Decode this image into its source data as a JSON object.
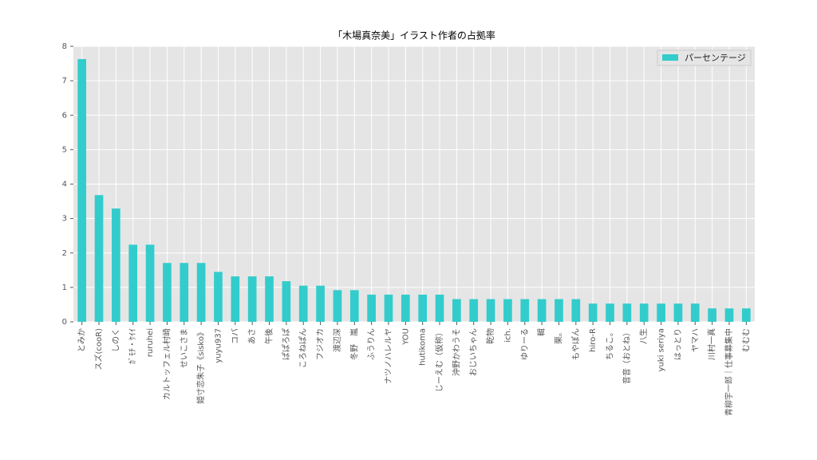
{
  "chart_data": {
    "type": "bar",
    "title": "「木場真奈美」イラスト作者の占拠率",
    "categories": [
      "とみか",
      "スズ(cooR)",
      "しのく",
      "ｶﾞﾓﾁ・ｹｲｲ",
      "ruruhei",
      "カルトッフェル村崎",
      "せいこさま",
      "姫寸恋朱子《sisko》",
      "yuyu937",
      "コバ",
      "あさ",
      "午後",
      "ぱぱろぱ",
      "ころねぱん",
      "フジオカ",
      "渡辺深",
      "冬野　嵐",
      "ふうりん",
      "ナツノハレルヤ",
      "YOU",
      "hutikoma",
      "じーえむ（仮称）",
      "沖野かわうそ",
      "おじいちゃん",
      "乾物",
      "ich.",
      "ゆりーる",
      "輯",
      "栗。",
      "もやぽん",
      "hiro-R",
      "ちるこ。",
      "音音（おとね）",
      "八生",
      "yuki seriya",
      "はっとり",
      "ヤマハ",
      "川村一真",
      "青柳宇一郎｜仕事募集中",
      "むむむ"
    ],
    "series": [
      {
        "name": "パーセンテージ",
        "color": "#33cccc",
        "values": [
          7.63,
          3.68,
          3.29,
          2.24,
          2.24,
          1.71,
          1.71,
          1.71,
          1.45,
          1.32,
          1.32,
          1.32,
          1.18,
          1.05,
          1.05,
          0.92,
          0.92,
          0.79,
          0.79,
          0.79,
          0.79,
          0.79,
          0.66,
          0.66,
          0.66,
          0.66,
          0.66,
          0.66,
          0.66,
          0.66,
          0.53,
          0.53,
          0.53,
          0.53,
          0.53,
          0.53,
          0.53,
          0.39,
          0.39,
          0.39
        ]
      }
    ],
    "ylim": [
      0,
      8
    ],
    "yticks": [
      0,
      1,
      2,
      3,
      4,
      5,
      6,
      7,
      8
    ],
    "grid": true,
    "legend": "upper right"
  }
}
